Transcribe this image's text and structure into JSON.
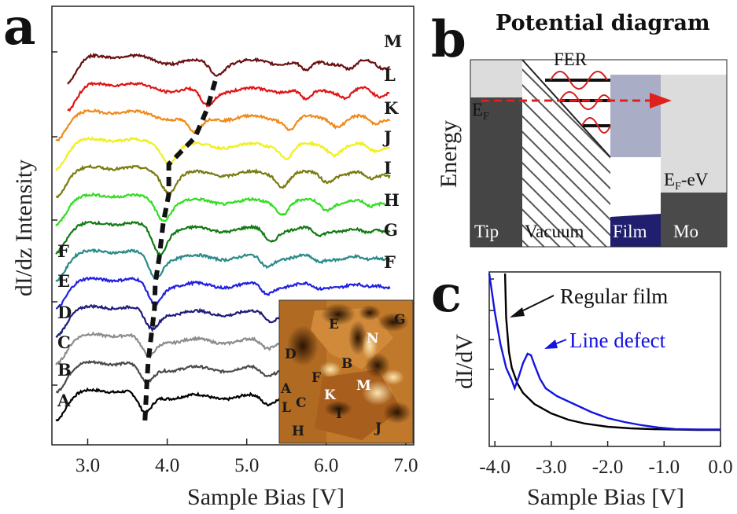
{
  "panel_labels": {
    "a": "a",
    "b": "b",
    "c": "c"
  },
  "panel_b": {
    "title": "Potential diagram",
    "ylabel": "Energy",
    "fer_label": "FER",
    "ef_label": "E",
    "ef_sub": "F",
    "efv_label": "E",
    "efv_sub": "F",
    "efv_suffix": "-eV",
    "regions": [
      "Tip",
      "Vacuum",
      "Film",
      "Mo"
    ],
    "colors": {
      "tip": "#454545",
      "film_top": "#a9aec6",
      "film_base": "#1f1f6e",
      "mo_top": "#dcdcdc",
      "mo_base": "#4a4a4a",
      "arrow": "#e0201a",
      "wave": "#d22222"
    }
  },
  "chart_data": [
    {
      "type": "line",
      "panel": "a",
      "title": "",
      "xlabel": "Sample Bias [V]",
      "ylabel": "dI/dz Intensity",
      "xlim": [
        2.55,
        7.1
      ],
      "xticks": [
        3.0,
        4.0,
        5.0,
        6.0,
        7.0
      ],
      "tick_labels": [
        "3.0",
        "4.0",
        "5.0",
        "6.0",
        "7.0"
      ],
      "y_units": "arbitrary, stacked offsets",
      "series": [
        {
          "name": "A",
          "color": "#000000",
          "offset": 0,
          "xstart": 2.6,
          "dips": [
            [
              3.72,
              1.0
            ],
            [
              5.25,
              0.35
            ],
            [
              6.0,
              0.2
            ],
            [
              6.5,
              0.15
            ]
          ],
          "dip_min": 3.72
        },
        {
          "name": "B",
          "color": "#4a4a4a",
          "offset": 1,
          "xstart": 2.6,
          "dips": [
            [
              3.74,
              0.85
            ],
            [
              5.25,
              0.35
            ],
            [
              6.0,
              0.2
            ],
            [
              6.5,
              0.15
            ]
          ],
          "dip_min": 3.74
        },
        {
          "name": "C",
          "color": "#8c8c8c",
          "offset": 2,
          "xstart": 2.6,
          "dips": [
            [
              3.76,
              0.9
            ],
            [
              5.25,
              0.35
            ],
            [
              6.0,
              0.2
            ],
            [
              6.5,
              0.15
            ]
          ],
          "dip_min": 3.76
        },
        {
          "name": "D",
          "color": "#1c1c7a",
          "offset": 3,
          "xstart": 2.6,
          "dips": [
            [
              3.8,
              0.9
            ],
            [
              5.3,
              0.35
            ],
            [
              6.0,
              0.2
            ],
            [
              6.5,
              0.15
            ]
          ],
          "dip_min": 3.8
        },
        {
          "name": "E",
          "color": "#2020e0",
          "offset": 4,
          "xstart": 2.6,
          "dips": [
            [
              3.84,
              1.0
            ],
            [
              5.25,
              0.4
            ],
            [
              5.9,
              0.2
            ],
            [
              6.5,
              0.15
            ]
          ],
          "dip_min": 3.84
        },
        {
          "name": "F",
          "color": "#2a8a8a",
          "offset": 5,
          "xstart": 2.6,
          "dips": [
            [
              3.85,
              1.1
            ],
            [
              5.25,
              0.45
            ],
            [
              5.9,
              0.25
            ],
            [
              6.5,
              0.2
            ]
          ],
          "dip_min": 3.85
        },
        {
          "name": "G",
          "color": "#127a12",
          "offset": 6,
          "xstart": 2.6,
          "dips": [
            [
              3.9,
              1.2
            ],
            [
              5.3,
              0.55
            ],
            [
              5.9,
              0.3
            ],
            [
              6.5,
              0.25
            ]
          ],
          "dip_min": 3.9
        },
        {
          "name": "H",
          "color": "#33dd22",
          "offset": 7,
          "xstart": 2.6,
          "dips": [
            [
              3.95,
              0.9
            ],
            [
              5.45,
              0.55
            ],
            [
              6.0,
              0.35
            ],
            [
              6.55,
              0.3
            ]
          ],
          "dip_min": 3.95
        },
        {
          "name": "I",
          "color": "#7a7a10",
          "offset": 8,
          "xstart": 2.6,
          "dips": [
            [
              4.02,
              0.85
            ],
            [
              5.45,
              0.55
            ],
            [
              6.0,
              0.35
            ],
            [
              6.55,
              0.3
            ]
          ],
          "dip_min": 4.02
        },
        {
          "name": "J",
          "color": "#f0f020",
          "offset": 9,
          "xstart": 2.6,
          "dips": [
            [
              4.02,
              0.75
            ],
            [
              5.5,
              0.55
            ],
            [
              6.1,
              0.35
            ],
            [
              6.6,
              0.3
            ]
          ],
          "dip_min": 4.02
        },
        {
          "name": "K",
          "color": "#f08a1a",
          "offset": 10,
          "xstart": 2.6,
          "dips": [
            [
              4.35,
              0.8
            ],
            [
              5.55,
              0.55
            ],
            [
              6.15,
              0.35
            ],
            [
              6.6,
              0.3
            ]
          ],
          "dip_min": 4.35
        },
        {
          "name": "L",
          "color": "#e01414",
          "offset": 11,
          "xstart": 2.75,
          "dips": [
            [
              4.5,
              0.8
            ],
            [
              5.75,
              0.55
            ],
            [
              6.25,
              0.35
            ],
            [
              6.65,
              0.3
            ]
          ],
          "dip_min": 4.5
        },
        {
          "name": "M",
          "color": "#6a1010",
          "offset": 12,
          "xstart": 2.75,
          "dips": [
            [
              4.62,
              0.55
            ],
            [
              5.75,
              0.5
            ],
            [
              6.3,
              0.35
            ],
            [
              6.7,
              0.25
            ]
          ],
          "dip_min": 4.62
        }
      ],
      "left_labels": [
        "F",
        "E",
        "D",
        "C",
        "B",
        "A"
      ],
      "right_labels": [
        "M",
        "L",
        "K",
        "J",
        "I",
        "H",
        "G",
        "F"
      ],
      "inset_labels": [
        "E",
        "G",
        "N",
        "D",
        "B",
        "F",
        "M",
        "A",
        "K",
        "C",
        "L",
        "I",
        "J",
        "H"
      ]
    },
    {
      "type": "line",
      "panel": "c",
      "title": "",
      "xlabel": "Sample Bias [V]",
      "ylabel": "dI/dV",
      "xlim": [
        -4.1,
        0.0
      ],
      "xticks": [
        -4.0,
        -3.0,
        -2.0,
        -1.0,
        0.0
      ],
      "tick_labels": [
        "-4.0",
        "-3.0",
        "-2.0",
        "-1.0",
        "0.0"
      ],
      "y_units": "arbitrary",
      "series": [
        {
          "name": "Regular film",
          "color": "#000000",
          "x": [
            -3.82,
            -3.8,
            -3.75,
            -3.7,
            -3.6,
            -3.5,
            -3.3,
            -3.0,
            -2.7,
            -2.4,
            -2.0,
            -1.6,
            -1.2,
            -0.8,
            -0.4,
            0.0
          ],
          "y": [
            1.0,
            0.72,
            0.5,
            0.4,
            0.3,
            0.24,
            0.17,
            0.11,
            0.07,
            0.045,
            0.025,
            0.015,
            0.01,
            0.007,
            0.005,
            0.005
          ]
        },
        {
          "name": "Line defect",
          "color": "#1414e0",
          "x": [
            -4.1,
            -4.0,
            -3.9,
            -3.8,
            -3.7,
            -3.65,
            -3.58,
            -3.5,
            -3.42,
            -3.36,
            -3.3,
            -3.2,
            -3.1,
            -2.9,
            -2.6,
            -2.3,
            -2.0,
            -1.7,
            -1.4,
            -1.1,
            -0.8,
            -0.4,
            0.0
          ],
          "y": [
            1.0,
            0.75,
            0.55,
            0.4,
            0.32,
            0.27,
            0.34,
            0.43,
            0.49,
            0.48,
            0.42,
            0.33,
            0.27,
            0.22,
            0.17,
            0.12,
            0.08,
            0.055,
            0.035,
            0.02,
            0.01,
            0.008,
            0.008
          ]
        }
      ]
    }
  ]
}
